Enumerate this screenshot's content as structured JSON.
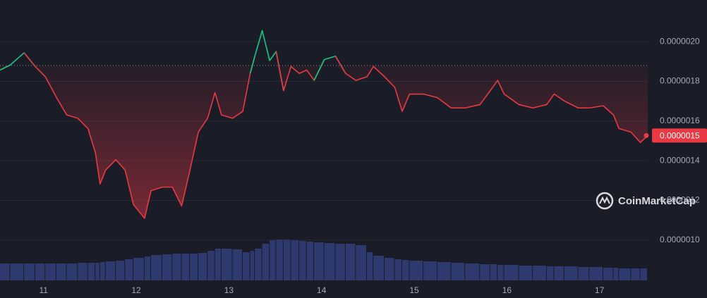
{
  "chart_data": {
    "type": "line",
    "x": [
      10.53,
      10.64,
      10.79,
      10.91,
      11.02,
      11.14,
      11.25,
      11.37,
      11.48,
      11.56,
      11.61,
      11.67,
      11.78,
      11.88,
      11.97,
      12.09,
      12.16,
      12.28,
      12.39,
      12.49,
      12.58,
      12.67,
      12.77,
      12.85,
      12.92,
      13.04,
      13.15,
      13.23,
      13.28,
      13.36,
      13.44,
      13.51,
      13.59,
      13.67,
      13.76,
      13.84,
      13.92,
      14.03,
      14.15,
      14.26,
      14.37,
      14.49,
      14.56,
      14.68,
      14.79,
      14.87,
      14.95,
      15.1,
      15.25,
      15.4,
      15.55,
      15.71,
      15.82,
      15.9,
      15.97,
      16.13,
      16.28,
      16.43,
      16.51,
      16.62,
      16.77,
      16.89,
      17.04,
      17.15,
      17.21,
      17.34,
      17.44,
      17.52
    ],
    "series": [
      {
        "color": "#ea3943",
        "up_color": "#16c784",
        "values": [
          1.857e-06,
          1.882e-06,
          1.944e-06,
          1.875e-06,
          1.823e-06,
          1.718e-06,
          1.631e-06,
          1.614e-06,
          1.562e-06,
          1.44e-06,
          1.283e-06,
          1.353e-06,
          1.405e-06,
          1.353e-06,
          1.179e-06,
          1.11e-06,
          1.249e-06,
          1.267e-06,
          1.267e-06,
          1.172e-06,
          1.353e-06,
          1.544e-06,
          1.614e-06,
          1.743e-06,
          1.631e-06,
          1.614e-06,
          1.649e-06,
          1.84e-06,
          1.927e-06,
          2.056e-06,
          1.905e-06,
          1.95e-06,
          1.753e-06,
          1.875e-06,
          1.84e-06,
          1.857e-06,
          1.805e-06,
          1.91e-06,
          1.927e-06,
          1.84e-06,
          1.805e-06,
          1.823e-06,
          1.875e-06,
          1.823e-06,
          1.77e-06,
          1.649e-06,
          1.736e-06,
          1.736e-06,
          1.718e-06,
          1.666e-06,
          1.666e-06,
          1.683e-06,
          1.753e-06,
          1.805e-06,
          1.736e-06,
          1.683e-06,
          1.666e-06,
          1.683e-06,
          1.736e-06,
          1.701e-06,
          1.666e-06,
          1.666e-06,
          1.677e-06,
          1.631e-06,
          1.562e-06,
          1.544e-06,
          1.492e-06,
          1.527e-06
        ]
      },
      {
        "color": "#2e3a6e",
        "values": [
          24,
          24,
          24,
          24,
          24,
          24,
          24,
          25,
          25,
          25,
          26,
          27,
          28,
          30,
          32,
          34,
          36,
          37,
          38,
          38,
          38,
          39,
          42,
          45,
          45,
          44,
          40,
          42,
          45,
          52,
          57,
          58,
          58,
          57,
          56,
          55,
          54,
          53,
          52,
          52,
          50,
          40,
          35,
          32,
          30,
          29,
          28,
          27,
          26,
          25,
          24,
          23,
          23,
          22,
          22,
          21,
          21,
          20,
          20,
          20,
          19,
          19,
          18,
          18,
          17,
          17,
          17,
          17
        ]
      }
    ],
    "baseline": 1.88e-06,
    "last_price_label": "0.0000015",
    "watermark": "CoinMarketCap",
    "xlim": [
      10.53,
      17.52
    ],
    "xticks": [
      11,
      12,
      13,
      14,
      15,
      16,
      17
    ],
    "ylim": [
      7.9e-07,
      2.21e-06
    ],
    "yticks": [
      {
        "value": 1e-06,
        "label": "0.0000010"
      },
      {
        "value": 1.2e-06,
        "label": "0.0000012"
      },
      {
        "value": 1.4e-06,
        "label": "0.0000014"
      },
      {
        "value": 1.6e-06,
        "label": "0.0000016"
      },
      {
        "value": 1.8e-06,
        "label": "0.0000018"
      },
      {
        "value": 2e-06,
        "label": "0.0000020"
      }
    ],
    "volume_lim": [
      0,
      100
    ],
    "grid": true
  }
}
